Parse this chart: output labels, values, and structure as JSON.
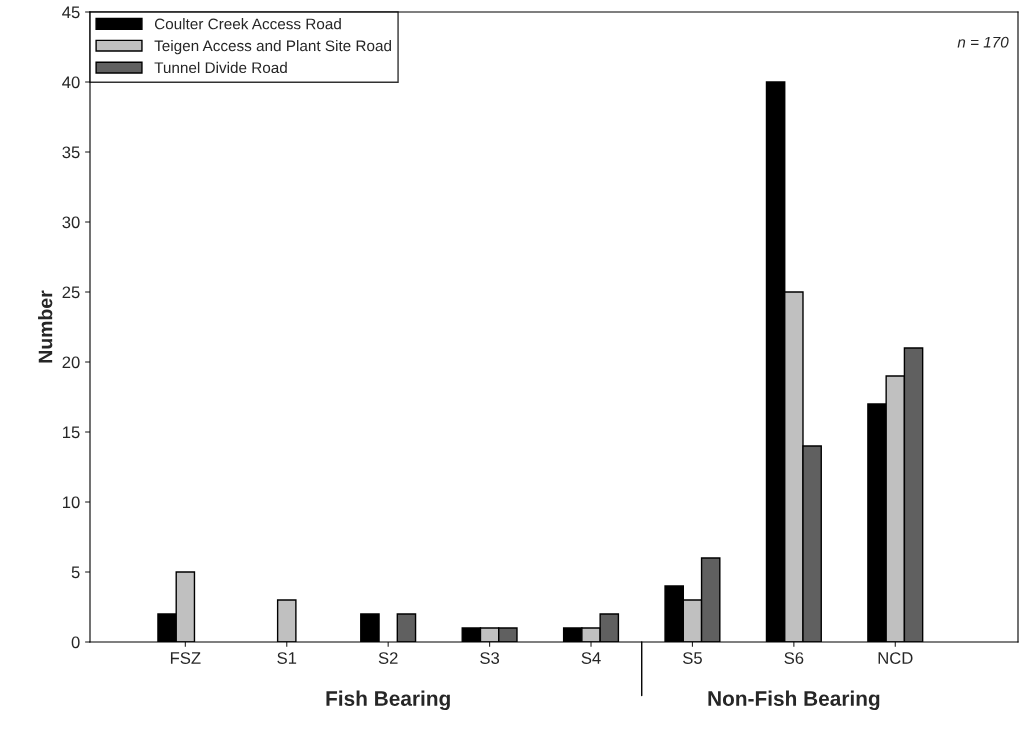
{
  "chart_data": {
    "type": "bar",
    "ylabel": "Number",
    "categories": [
      "FSZ",
      "S1",
      "S2",
      "S3",
      "S4",
      "S5",
      "S6",
      "NCD"
    ],
    "series": [
      {
        "name": "Coulter Creek Access Road",
        "color": "#000000",
        "values": [
          2,
          null,
          2,
          1,
          1,
          4,
          40,
          17
        ]
      },
      {
        "name": "Teigen Access and Plant Site Road",
        "color": "#c0c0c0",
        "values": [
          5,
          3,
          null,
          1,
          1,
          3,
          25,
          19
        ]
      },
      {
        "name": "Tunnel Divide Road",
        "color": "#606060",
        "values": [
          null,
          null,
          2,
          1,
          2,
          6,
          14,
          21
        ]
      }
    ],
    "ylim": [
      0,
      45
    ],
    "yticks": [
      0,
      5,
      10,
      15,
      20,
      25,
      30,
      35,
      40,
      45
    ],
    "grid": false,
    "legend": "top left",
    "annotations": [
      "n = 170",
      "Fish Bearing",
      "Non-Fish Bearing"
    ]
  }
}
